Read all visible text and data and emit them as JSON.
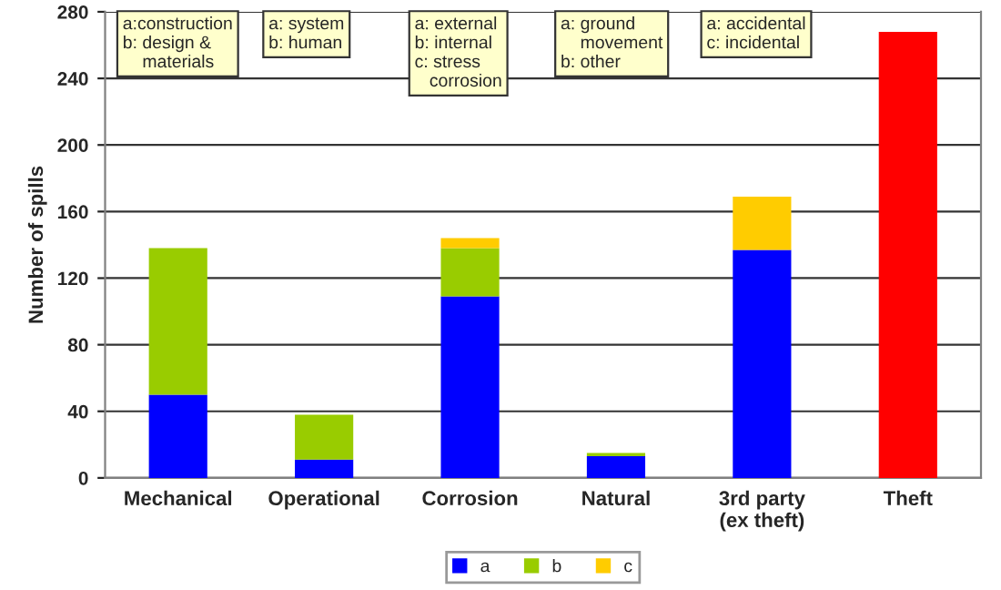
{
  "chart_data": {
    "type": "bar",
    "stacked": true,
    "ylabel": "Number of spills",
    "categories": [
      "Mechanical",
      "Operational",
      "Corrosion",
      "Natural",
      "3rd party\n(ex theft)",
      "Theft"
    ],
    "series": [
      {
        "name": "a",
        "color": "#0000ff",
        "colors": [
          "#0000ff",
          "#0000ff",
          "#0000ff",
          "#0000ff",
          "#0000ff",
          "#ff0000"
        ],
        "values": [
          50,
          11,
          109,
          13,
          137,
          268
        ]
      },
      {
        "name": "b",
        "color": "#99cc00",
        "values": [
          88,
          27,
          29,
          2,
          null,
          null
        ]
      },
      {
        "name": "c",
        "color": "#ffcc00",
        "values": [
          null,
          null,
          6,
          null,
          32,
          null
        ]
      }
    ],
    "ylim": [
      0,
      280
    ],
    "yticks": [
      0,
      40,
      80,
      120,
      160,
      200,
      240,
      280
    ],
    "grid": "y",
    "legend": "bottom",
    "annotations": [
      "a:construction\nb: design &\n    materials",
      "a: system\nb: human",
      "a: external\nb: internal\nc: stress\n   corrosion",
      "a: ground\n    movement\nb: other",
      "a: accidental\nc: incidental"
    ]
  }
}
